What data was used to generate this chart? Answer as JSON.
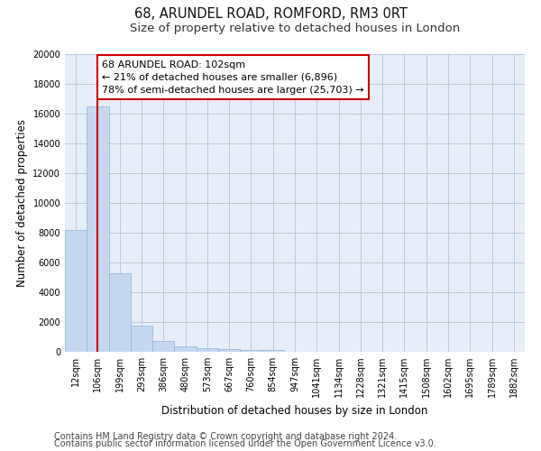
{
  "title1": "68, ARUNDEL ROAD, ROMFORD, RM3 0RT",
  "title2": "Size of property relative to detached houses in London",
  "xlabel": "Distribution of detached houses by size in London",
  "ylabel": "Number of detached properties",
  "categories": [
    "12sqm",
    "106sqm",
    "199sqm",
    "293sqm",
    "386sqm",
    "480sqm",
    "573sqm",
    "667sqm",
    "760sqm",
    "854sqm",
    "947sqm",
    "1041sqm",
    "1134sqm",
    "1228sqm",
    "1321sqm",
    "1415sqm",
    "1508sqm",
    "1602sqm",
    "1695sqm",
    "1789sqm",
    "1882sqm"
  ],
  "values": [
    8200,
    16500,
    5300,
    1750,
    750,
    350,
    270,
    200,
    150,
    100,
    0,
    0,
    0,
    0,
    0,
    0,
    0,
    0,
    0,
    0,
    0
  ],
  "bar_color": "#c5d8f0",
  "bar_edge_color": "#8ab4d8",
  "vline_x": 1.0,
  "vline_color": "#cc0000",
  "annotation_text": "68 ARUNDEL ROAD: 102sqm\n← 21% of detached houses are smaller (6,896)\n78% of semi-detached houses are larger (25,703) →",
  "annotation_box_color": "#ffffff",
  "annotation_box_edge": "#cc0000",
  "ylim": [
    0,
    20000
  ],
  "yticks": [
    0,
    2000,
    4000,
    6000,
    8000,
    10000,
    12000,
    14000,
    16000,
    18000,
    20000
  ],
  "bg_color": "#e8eef8",
  "footer1": "Contains HM Land Registry data © Crown copyright and database right 2024.",
  "footer2": "Contains public sector information licensed under the Open Government Licence v3.0.",
  "title_fontsize": 10.5,
  "subtitle_fontsize": 9.5,
  "axis_label_fontsize": 8.5,
  "tick_fontsize": 7,
  "footer_fontsize": 7,
  "annotation_fontsize": 8
}
